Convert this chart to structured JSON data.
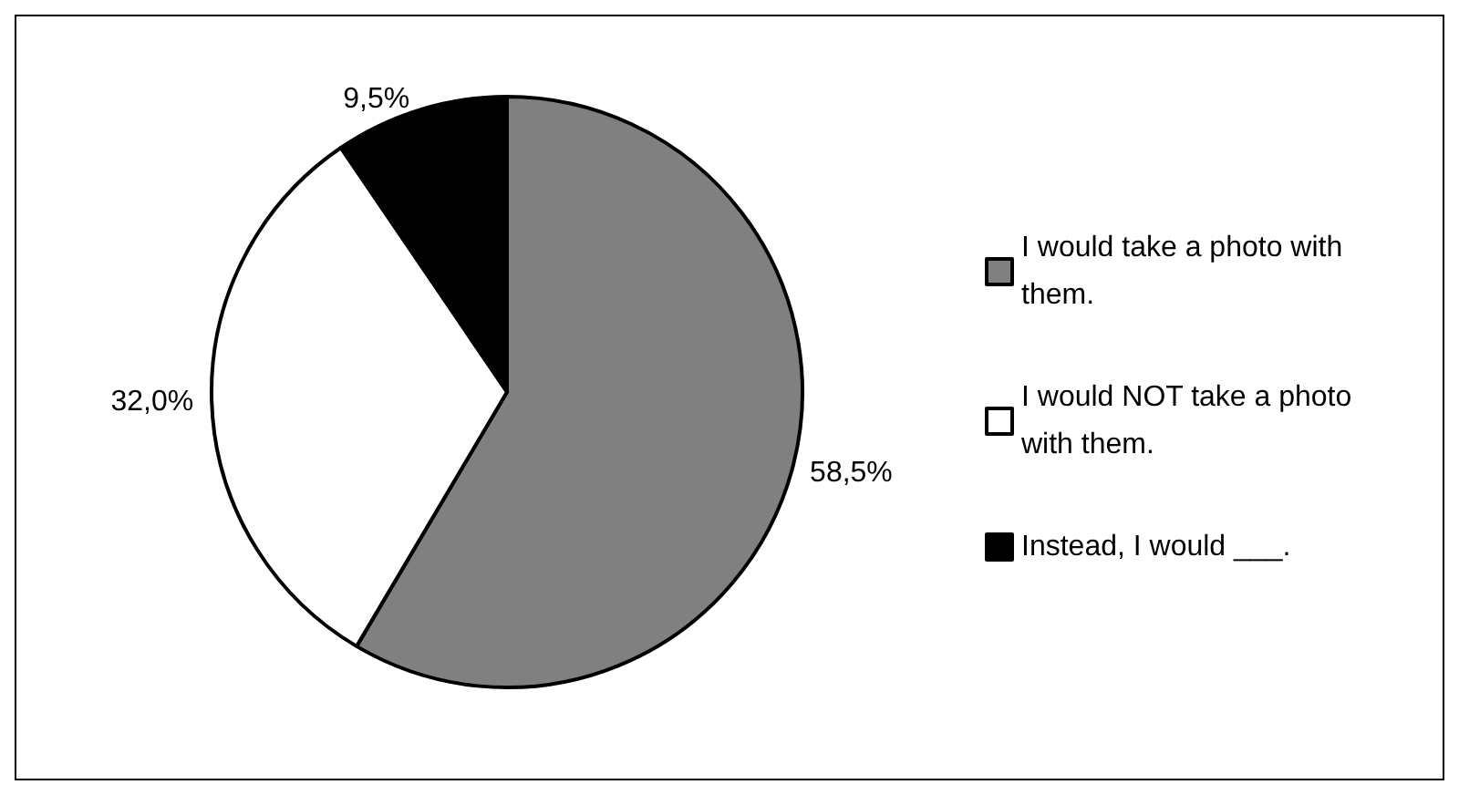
{
  "chart_data": {
    "type": "pie",
    "categories": [
      "I would take a photo with them.",
      "I would NOT take a photo with them.",
      "Instead, I would ___."
    ],
    "values": [
      58.5,
      32.0,
      9.5
    ],
    "colors": [
      "#808080",
      "#ffffff",
      "#000000"
    ],
    "value_labels": [
      "58,5%",
      "32,0%",
      "9,5%"
    ],
    "legend": "right"
  }
}
